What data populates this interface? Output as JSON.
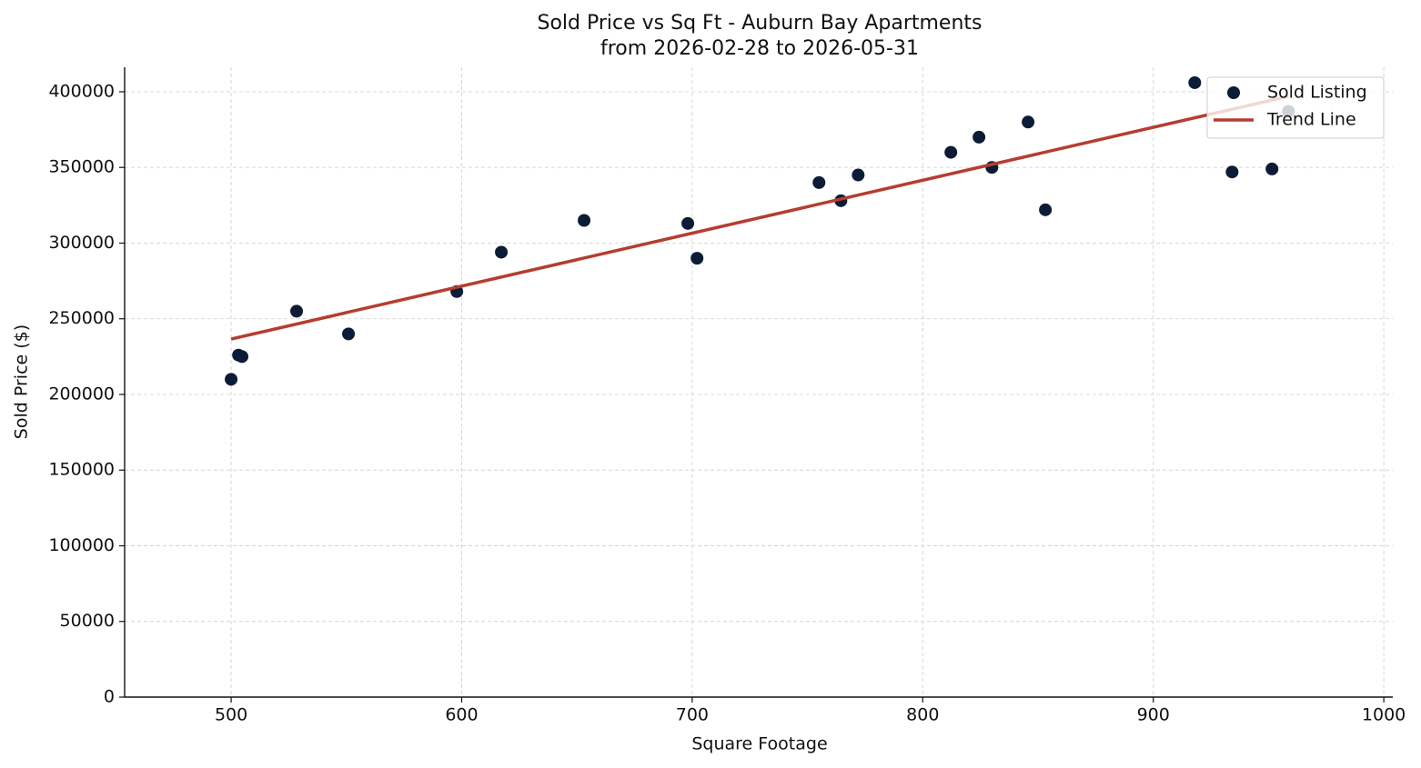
{
  "chart_data": {
    "type": "scatter",
    "title": "Sold Price vs Sq Ft - Auburn Bay Apartments",
    "subtitle": "from 2026-02-28 to 2026-05-31",
    "x_label": "Square Footage",
    "y_label": "Sold Price ($)",
    "xlim": [
      453.8,
      1003.9
    ],
    "ylim": [
      0,
      416200
    ],
    "xticks": [
      500,
      600,
      700,
      800,
      900,
      1000
    ],
    "yticks": [
      0,
      50000,
      100000,
      150000,
      200000,
      250000,
      300000,
      350000,
      400000
    ],
    "grid": true,
    "legend": "upper right",
    "series": [
      {
        "name": "Sold Listing",
        "color": "#0c1c36",
        "type": "scatter",
        "x": [
          500,
          503.2,
          504.7,
          528.4,
          550.9,
          597.9,
          617.2,
          653.1,
          698.1,
          702.1,
          755,
          764.5,
          772,
          812.2,
          824.4,
          830,
          845.7,
          853.2,
          918,
          934.2,
          951.5,
          958.6
        ],
        "values": [
          210000,
          226000,
          225000,
          255000,
          240000,
          268000,
          294000,
          315000,
          313000,
          290000,
          340000,
          328000,
          345000,
          360000,
          370000,
          350000,
          380000,
          322000,
          406000,
          347000,
          349000,
          387000
        ]
      },
      {
        "name": "Trend Line",
        "color": "#b53d30",
        "type": "line",
        "x": [
          500,
          958.6
        ],
        "values": [
          236600,
          397000
        ]
      }
    ]
  }
}
